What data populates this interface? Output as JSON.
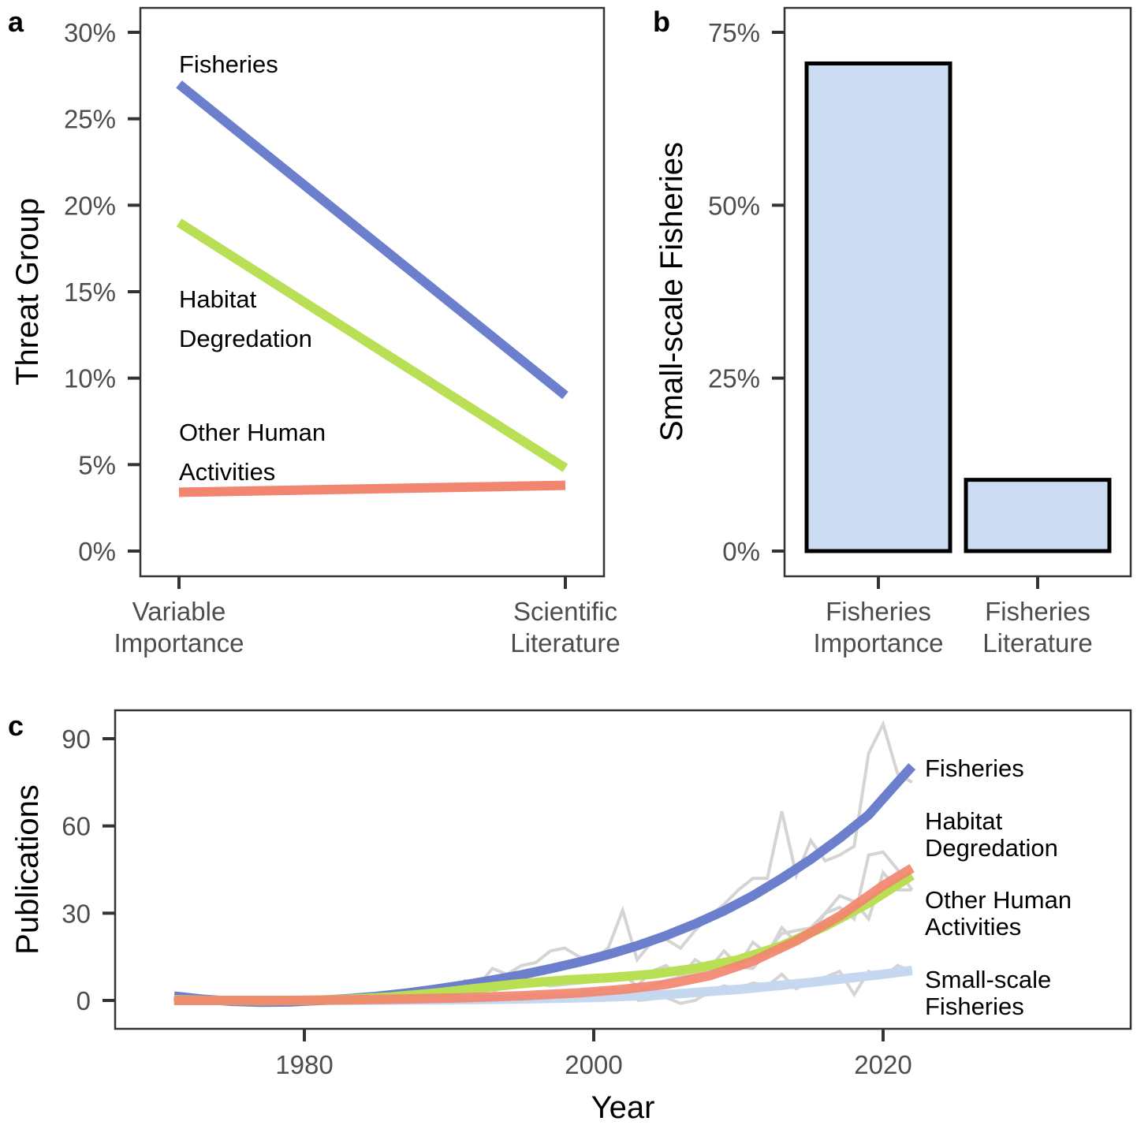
{
  "panels": {
    "a": {
      "letter": "a"
    },
    "b": {
      "letter": "b"
    },
    "c": {
      "letter": "c"
    }
  },
  "chart_data": [
    {
      "panel": "a",
      "type": "line",
      "title": "",
      "xlabel": "",
      "ylabel": "Threat Group",
      "categories": [
        "Variable\nImportance",
        "Scientific\nLiterature"
      ],
      "yticks": [
        "0%",
        "5%",
        "10%",
        "15%",
        "20%",
        "25%",
        "30%"
      ],
      "ylim": [
        0,
        30
      ],
      "grid": false,
      "series": [
        {
          "name": "Fisheries",
          "values": [
            27,
            9
          ],
          "color": "#6b7fcd"
        },
        {
          "name": "Habitat\nDegredation",
          "values": [
            19,
            4.8
          ],
          "color": "#b9df55"
        },
        {
          "name": "Other Human\nActivities",
          "values": [
            3.4,
            3.8
          ],
          "color": "#f2856f"
        }
      ]
    },
    {
      "panel": "b",
      "type": "bar",
      "title": "",
      "xlabel": "",
      "ylabel": "Small-scale Fisheries",
      "categories": [
        "Fisheries\nImportance",
        "Fisheries\nLiterature"
      ],
      "values": [
        70.5,
        10.3
      ],
      "bar_color": "#ccdcf2",
      "yticks": [
        "0%",
        "25%",
        "50%",
        "75%"
      ],
      "ylim": [
        0,
        75
      ],
      "grid": false
    },
    {
      "panel": "c",
      "type": "line",
      "title": "",
      "xlabel": "Year",
      "ylabel": "Publications",
      "xticks": [
        "1980",
        "2000",
        "2020"
      ],
      "yticks": [
        "0",
        "30",
        "60",
        "90"
      ],
      "xlim": [
        1967.5,
        2035
      ],
      "ylim": [
        -10,
        100
      ],
      "grid": false,
      "series": [
        {
          "name": "Fisheries",
          "color": "#6b7fcd",
          "x": [
            1971,
            1973,
            1975,
            1977,
            1979,
            1981,
            1983,
            1985,
            1987,
            1989,
            1991,
            1993,
            1995,
            1997,
            1999,
            2001,
            2003,
            2005,
            2007,
            2009,
            2011,
            2013,
            2015,
            2017,
            2019,
            2021,
            2022
          ],
          "values": [
            1.5,
            0.4,
            -0.3,
            -0.6,
            -0.5,
            0,
            0.6,
            1.4,
            2.5,
            3.8,
            5.3,
            7,
            8.8,
            10.9,
            13.2,
            15.8,
            18.8,
            22.3,
            26.3,
            30.8,
            36,
            42,
            48.5,
            55.8,
            63.8,
            75,
            80.5
          ]
        },
        {
          "name": "Habitat\nDegredation",
          "color": "#b9df55",
          "x": [
            1971,
            1974,
            1977,
            1980,
            1983,
            1986,
            1989,
            1992,
            1995,
            1998,
            2001,
            2004,
            2007,
            2010,
            2013,
            2016,
            2019,
            2022
          ],
          "values": [
            0.2,
            0,
            -0.1,
            0,
            0.4,
            1.2,
            2.5,
            4.2,
            5.8,
            7,
            7.8,
            9,
            11,
            14,
            18.8,
            25.5,
            33.5,
            43
          ]
        },
        {
          "name": "Other Human\nActivities",
          "color": "#f2856f",
          "x": [
            1971,
            1975,
            1979,
            1983,
            1987,
            1991,
            1995,
            1999,
            2002,
            2005,
            2008,
            2011,
            2014,
            2017,
            2020,
            2022
          ],
          "values": [
            0,
            0,
            0,
            0.2,
            0.5,
            0.9,
            1.6,
            2.6,
            3.8,
            5.5,
            8.5,
            13.5,
            20.5,
            29,
            39.5,
            45.5
          ]
        },
        {
          "name": "Small-scale\nFisheries",
          "color": "#c5d8f0",
          "x": [
            1971,
            1980,
            1990,
            1995,
            2000,
            2005,
            2010,
            2015,
            2020,
            2022
          ],
          "values": [
            0,
            0,
            0.2,
            0.5,
            1,
            2,
            3.8,
            6.2,
            9,
            10.3
          ]
        }
      ],
      "raw_counts": [
        {
          "of": "Fisheries",
          "x": [
            1991,
            1992,
            1993,
            1994,
            1995,
            1996,
            1997,
            1998,
            1999,
            2000,
            2001,
            2002,
            2003,
            2004,
            2005,
            2006,
            2007,
            2008,
            2009,
            2010,
            2011,
            2012,
            2013,
            2014,
            2015,
            2016,
            2017,
            2018,
            2019,
            2020,
            2021,
            2022
          ],
          "values": [
            7,
            5,
            11,
            9,
            12,
            13,
            17,
            18,
            15,
            14,
            18,
            31,
            14,
            20,
            21,
            18,
            24,
            29,
            33,
            38,
            42,
            42,
            65,
            43,
            55,
            48,
            50,
            53,
            85,
            95,
            78,
            75
          ]
        },
        {
          "of": "Habitat\nDegredation",
          "x": [
            1993,
            1995,
            1997,
            1999,
            2001,
            2002,
            2003,
            2004,
            2005,
            2006,
            2007,
            2008,
            2009,
            2010,
            2011,
            2012,
            2013,
            2014,
            2015,
            2016,
            2017,
            2018,
            2019,
            2020,
            2021,
            2022
          ],
          "values": [
            3,
            7,
            5,
            6,
            7,
            9,
            5,
            10,
            12,
            8,
            14,
            11,
            17,
            12,
            20,
            16,
            25,
            20,
            23,
            30,
            32,
            28,
            50,
            51,
            45,
            38
          ]
        },
        {
          "of": "Other Human\nActivities",
          "x": [
            1999,
            2001,
            2003,
            2005,
            2007,
            2009,
            2011,
            2013,
            2015,
            2016,
            2017,
            2018,
            2019,
            2020,
            2021,
            2022
          ],
          "values": [
            3,
            4,
            3,
            7,
            9,
            12,
            11,
            23,
            25,
            30,
            36,
            34,
            28,
            44,
            38,
            38
          ]
        },
        {
          "of": "Small-scale\nFisheries",
          "x": [
            2003,
            2005,
            2006,
            2007,
            2008,
            2009,
            2010,
            2011,
            2012,
            2013,
            2014,
            2015,
            2016,
            2017,
            2018,
            2019,
            2020,
            2021,
            2022
          ],
          "values": [
            0,
            1,
            -1,
            0,
            3,
            5,
            4,
            6,
            5,
            9,
            4,
            7,
            8,
            10,
            2,
            10,
            8,
            12,
            10
          ]
        }
      ]
    }
  ]
}
